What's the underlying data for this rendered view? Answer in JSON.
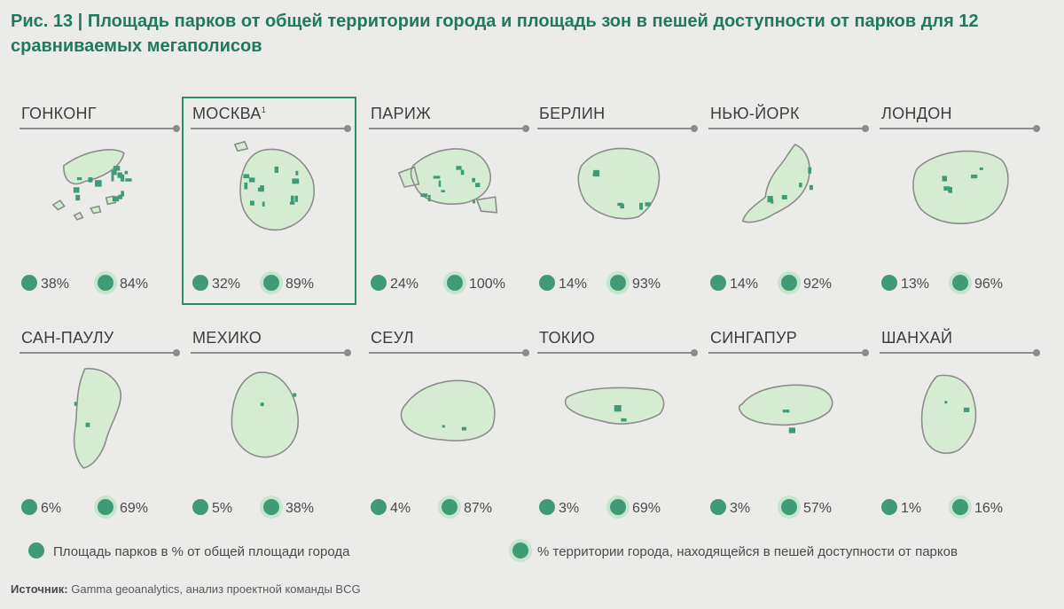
{
  "title": "Рис. 13 | Площадь парков от общей территории города и площадь зон в пешей доступности от парков для 12 сравниваемых мегаполисов",
  "colors": {
    "accent": "#1f7a5c",
    "park_dot": "#3f9a78",
    "walk_halo": "#c5e6cc",
    "city_fill": "#d5ecd3",
    "park_fill": "#3f9a78",
    "outline": "#8c8c8c"
  },
  "chart_data": {
    "type": "table",
    "title": "Рис. 13 | Площадь парков от общей территории города и площадь зон в пешей доступности от парков для 12 сравниваемых мегаполисов",
    "metrics": [
      "Площадь парков в % от общей площади города",
      "% территории города, находящейся в пешей доступности от парков"
    ],
    "categories": [
      "ГОНКОНГ",
      "МОСКВА",
      "ПАРИЖ",
      "БЕРЛИН",
      "НЬЮ-ЙОРК",
      "ЛОНДОН",
      "САН-ПАУЛУ",
      "МЕХИКО",
      "СЕУЛ",
      "ТОКИО",
      "СИНГАПУР",
      "ШАНХАЙ"
    ],
    "series": [
      {
        "name": "Площадь парков в % от общей площади города",
        "values": [
          38,
          32,
          24,
          14,
          14,
          13,
          6,
          5,
          4,
          3,
          3,
          1
        ]
      },
      {
        "name": "% территории города, находящейся в пешей доступности от парков",
        "values": [
          84,
          89,
          100,
          93,
          92,
          96,
          69,
          38,
          87,
          69,
          57,
          16
        ]
      }
    ]
  },
  "cities": [
    {
      "name": "ГОНКОНГ",
      "sup": "",
      "park": "38%",
      "walk": "84%",
      "park_level": 0.38,
      "walk_level": 0.84
    },
    {
      "name": "МОСКВА",
      "sup": "1",
      "park": "32%",
      "walk": "89%",
      "park_level": 0.32,
      "walk_level": 0.89,
      "highlighted": true
    },
    {
      "name": "ПАРИЖ",
      "sup": "",
      "park": "24%",
      "walk": "100%",
      "park_level": 0.24,
      "walk_level": 1.0
    },
    {
      "name": "БЕРЛИН",
      "sup": "",
      "park": "14%",
      "walk": "93%",
      "park_level": 0.14,
      "walk_level": 0.93
    },
    {
      "name": "НЬЮ-ЙОРК",
      "sup": "",
      "park": "14%",
      "walk": "92%",
      "park_level": 0.14,
      "walk_level": 0.92
    },
    {
      "name": "ЛОНДОН",
      "sup": "",
      "park": "13%",
      "walk": "96%",
      "park_level": 0.13,
      "walk_level": 0.96
    },
    {
      "name": "САН-ПАУЛУ",
      "sup": "",
      "park": "6%",
      "walk": "69%",
      "park_level": 0.06,
      "walk_level": 0.69
    },
    {
      "name": "МЕХИКО",
      "sup": "",
      "park": "5%",
      "walk": "38%",
      "park_level": 0.05,
      "walk_level": 0.38
    },
    {
      "name": "СЕУЛ",
      "sup": "",
      "park": "4%",
      "walk": "87%",
      "park_level": 0.04,
      "walk_level": 0.87
    },
    {
      "name": "ТОКИО",
      "sup": "",
      "park": "3%",
      "walk": "69%",
      "park_level": 0.03,
      "walk_level": 0.69
    },
    {
      "name": "СИНГАПУР",
      "sup": "",
      "park": "3%",
      "walk": "57%",
      "park_level": 0.03,
      "walk_level": 0.57
    },
    {
      "name": "ШАНХАЙ",
      "sup": "",
      "park": "1%",
      "walk": "16%",
      "park_level": 0.01,
      "walk_level": 0.16
    }
  ],
  "legend": {
    "park_label": "Площадь парков в % от общей площади города",
    "walk_label": "% территории города, находящейся в пешей доступности от парков"
  },
  "source": {
    "label": "Источник:",
    "text": "Gamma geoanalytics, анализ проектной команды BCG"
  }
}
